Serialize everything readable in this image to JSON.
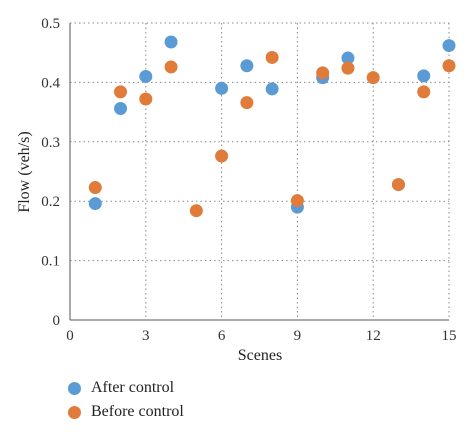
{
  "chart_data": {
    "type": "scatter",
    "title": "",
    "xlabel": "Scenes",
    "ylabel": "Flow (veh/s)",
    "xlim": [
      0,
      15
    ],
    "ylim": [
      0,
      0.5
    ],
    "x_ticks": [
      "0",
      "3",
      "6",
      "9",
      "12",
      "15"
    ],
    "y_ticks": [
      "0",
      "0.1",
      "0.2",
      "0.3",
      "0.4",
      "0.5"
    ],
    "grid": "dotted",
    "legend_position": "bottom-left",
    "series": [
      {
        "name": "After control",
        "color": "#5b9bd5",
        "points": [
          {
            "x": 1,
            "y": 0.196
          },
          {
            "x": 2,
            "y": 0.356
          },
          {
            "x": 3,
            "y": 0.41
          },
          {
            "x": 4,
            "y": 0.468
          },
          {
            "x": 6,
            "y": 0.39
          },
          {
            "x": 7,
            "y": 0.428
          },
          {
            "x": 8,
            "y": 0.389
          },
          {
            "x": 9,
            "y": 0.19
          },
          {
            "x": 10,
            "y": 0.408
          },
          {
            "x": 11,
            "y": 0.441
          },
          {
            "x": 13,
            "y": 0.228
          },
          {
            "x": 14,
            "y": 0.411
          },
          {
            "x": 15,
            "y": 0.462
          }
        ]
      },
      {
        "name": "Before control",
        "color": "#e07b39",
        "points": [
          {
            "x": 1,
            "y": 0.223
          },
          {
            "x": 2,
            "y": 0.384
          },
          {
            "x": 3,
            "y": 0.372
          },
          {
            "x": 4,
            "y": 0.426
          },
          {
            "x": 5,
            "y": 0.184
          },
          {
            "x": 6,
            "y": 0.276
          },
          {
            "x": 7,
            "y": 0.366
          },
          {
            "x": 8,
            "y": 0.442
          },
          {
            "x": 9,
            "y": 0.201
          },
          {
            "x": 10,
            "y": 0.416
          },
          {
            "x": 11,
            "y": 0.424
          },
          {
            "x": 12,
            "y": 0.408
          },
          {
            "x": 13,
            "y": 0.228
          },
          {
            "x": 14,
            "y": 0.384
          },
          {
            "x": 15,
            "y": 0.428
          }
        ]
      }
    ]
  }
}
